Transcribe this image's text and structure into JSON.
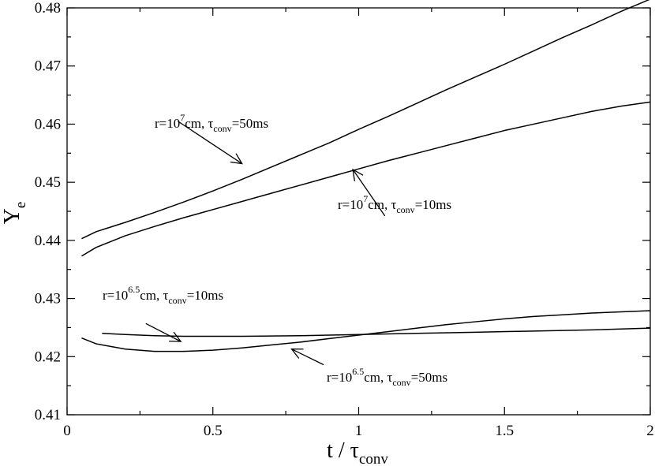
{
  "chart_data": {
    "type": "line",
    "xlim": [
      0,
      2
    ],
    "ylim": [
      0.41,
      0.48
    ],
    "x_ticks": [
      0,
      0.5,
      1,
      1.5,
      2
    ],
    "x_tick_labels": [
      "0",
      "0.5",
      "1",
      "1.5",
      "2"
    ],
    "y_ticks": [
      0.41,
      0.42,
      0.43,
      0.44,
      0.45,
      0.46,
      0.47,
      0.48
    ],
    "y_tick_labels": [
      "0.41",
      "0.42",
      "0.43",
      "0.44",
      "0.45",
      "0.46",
      "0.47",
      "0.48"
    ],
    "xlabel": {
      "main": "t / τ",
      "sub": "conv"
    },
    "ylabel": {
      "main": "Y",
      "sub": "e"
    },
    "grid": false,
    "legend": "none",
    "series": [
      {
        "x": [
          0.05,
          0.1,
          0.2,
          0.3,
          0.4,
          0.5,
          0.6,
          0.7,
          0.8,
          0.9,
          1.0,
          1.1,
          1.2,
          1.3,
          1.4,
          1.5,
          1.6,
          1.7,
          1.8,
          1.9,
          2.0
        ],
        "values": [
          0.4403,
          0.4415,
          0.4431,
          0.4448,
          0.4466,
          0.4485,
          0.4505,
          0.4526,
          0.4547,
          0.4568,
          0.4591,
          0.4613,
          0.4636,
          0.4659,
          0.4681,
          0.4703,
          0.4726,
          0.4749,
          0.4771,
          0.4794,
          0.4815
        ]
      },
      {
        "x": [
          0.05,
          0.1,
          0.2,
          0.3,
          0.4,
          0.5,
          0.6,
          0.7,
          0.8,
          0.9,
          1.0,
          1.1,
          1.2,
          1.3,
          1.4,
          1.5,
          1.6,
          1.7,
          1.8,
          1.9,
          2.0
        ],
        "values": [
          0.4373,
          0.4388,
          0.4408,
          0.4424,
          0.4439,
          0.4453,
          0.4467,
          0.4481,
          0.4495,
          0.4509,
          0.4523,
          0.4537,
          0.455,
          0.4563,
          0.4576,
          0.4589,
          0.46,
          0.4611,
          0.4622,
          0.4631,
          0.4638
        ]
      },
      {
        "x": [
          0.12,
          0.2,
          0.3,
          0.4,
          0.5,
          0.6,
          0.8,
          1.0,
          1.2,
          1.4,
          1.6,
          1.8,
          2.0
        ],
        "values": [
          0.424,
          0.4238,
          0.4236,
          0.4235,
          0.4235,
          0.4235,
          0.4236,
          0.4238,
          0.424,
          0.4242,
          0.4244,
          0.4246,
          0.4249
        ]
      },
      {
        "x": [
          0.05,
          0.1,
          0.2,
          0.3,
          0.4,
          0.5,
          0.6,
          0.7,
          0.8,
          0.9,
          1.0,
          1.1,
          1.2,
          1.3,
          1.4,
          1.5,
          1.6,
          1.7,
          1.8,
          1.9,
          2.0
        ],
        "values": [
          0.4232,
          0.4222,
          0.4213,
          0.4209,
          0.4209,
          0.4211,
          0.4215,
          0.422,
          0.4225,
          0.4231,
          0.4237,
          0.4243,
          0.4249,
          0.4255,
          0.426,
          0.4265,
          0.4269,
          0.4272,
          0.4275,
          0.4277,
          0.4279
        ]
      }
    ],
    "annotations": [
      {
        "name": "annotation-r7-tau50",
        "base": "r=10",
        "sup": "7",
        "unit": "cm, τ",
        "sub": "conv",
        "tail": "=50ms",
        "arrow_from": [
          0.38,
          0.4605
        ],
        "arrow_to": [
          0.6,
          0.4532
        ]
      },
      {
        "name": "annotation-r7-tau10",
        "base": "r=10",
        "sup": "7",
        "unit": "cm, τ",
        "sub": "conv",
        "tail": "=10ms",
        "arrow_from": [
          1.09,
          0.4442
        ],
        "arrow_to": [
          0.98,
          0.4522
        ]
      },
      {
        "name": "annotation-r65-tau10",
        "base": "r=10",
        "sup": "6.5",
        "unit": "cm, τ",
        "sub": "conv",
        "tail": "=10ms",
        "arrow_from": [
          0.27,
          0.4257
        ],
        "arrow_to": [
          0.39,
          0.4226
        ]
      },
      {
        "name": "annotation-r65-tau50",
        "base": "r=10",
        "sup": "6.5",
        "unit": "cm, τ",
        "sub": "conv",
        "tail": "=50ms",
        "arrow_from": [
          0.88,
          0.4186
        ],
        "arrow_to": [
          0.77,
          0.4213
        ]
      }
    ]
  }
}
